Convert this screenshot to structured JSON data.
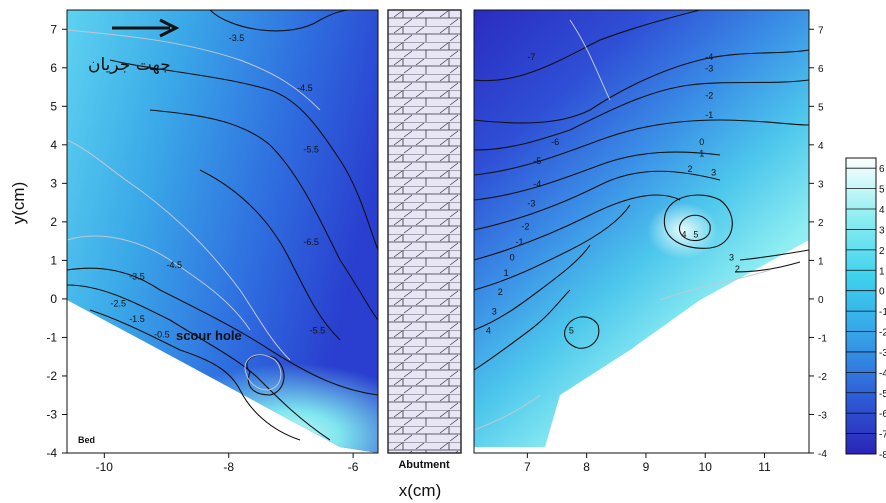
{
  "chart_data": {
    "type": "heatmap",
    "xlabel": "x(cm)",
    "ylabel": "y(cm)",
    "xlim": [
      -10.6,
      11.8
    ],
    "ylim": [
      -4,
      7.5
    ],
    "x_ticks_left": [
      "-10",
      "-8",
      "-6"
    ],
    "x_ticks_right": [
      "7",
      "8",
      "9",
      "10",
      "11"
    ],
    "y_ticks": [
      "-4",
      "-3",
      "-2",
      "-1",
      "0",
      "1",
      "2",
      "3",
      "4",
      "5",
      "6",
      "7"
    ],
    "colorbar_ticks": [
      "6",
      "5",
      "4",
      "3",
      "2",
      "1",
      "0",
      "-1",
      "-2",
      "-3",
      "-4",
      "-5",
      "-6",
      "-7",
      "-8"
    ],
    "colorbar_range": [
      -8,
      6.5
    ],
    "contour_labels_left": [
      {
        "text": "-3.5",
        "x": -8.0,
        "y": 6.7
      },
      {
        "text": "-4.5",
        "x": -6.9,
        "y": 5.4
      },
      {
        "text": "-5.5",
        "x": -6.8,
        "y": 3.8
      },
      {
        "text": "-6.5",
        "x": -6.8,
        "y": 1.4
      },
      {
        "text": "-5.5",
        "x": -6.7,
        "y": -0.9
      },
      {
        "text": "-4.5",
        "x": -9.0,
        "y": 0.8
      },
      {
        "text": "-3.5",
        "x": -9.6,
        "y": 0.5
      },
      {
        "text": "-2.5",
        "x": -9.9,
        "y": -0.2
      },
      {
        "text": "-1.5",
        "x": -9.6,
        "y": -0.6
      },
      {
        "text": "-0.5",
        "x": -9.2,
        "y": -1.0
      }
    ],
    "contour_labels_right": [
      {
        "text": "-7",
        "x": 7.0,
        "y": 6.2
      },
      {
        "text": "-6",
        "x": 7.4,
        "y": 4.0
      },
      {
        "text": "-5",
        "x": 7.1,
        "y": 3.5
      },
      {
        "text": "-4",
        "x": 7.1,
        "y": 2.9
      },
      {
        "text": "-3",
        "x": 7.0,
        "y": 2.4
      },
      {
        "text": "-2",
        "x": 6.9,
        "y": 1.8
      },
      {
        "text": "-1",
        "x": 6.8,
        "y": 1.4
      },
      {
        "text": "0",
        "x": 6.7,
        "y": 1.0
      },
      {
        "text": "1",
        "x": 6.6,
        "y": 0.6
      },
      {
        "text": "2",
        "x": 6.5,
        "y": 0.1
      },
      {
        "text": "3",
        "x": 6.4,
        "y": -0.4
      },
      {
        "text": "4",
        "x": 6.3,
        "y": -0.9
      },
      {
        "text": "-4",
        "x": 10.0,
        "y": 6.2
      },
      {
        "text": "-3",
        "x": 10.0,
        "y": 5.9
      },
      {
        "text": "-2",
        "x": 10.0,
        "y": 5.2
      },
      {
        "text": "-1",
        "x": 10.0,
        "y": 4.7
      },
      {
        "text": "0",
        "x": 9.9,
        "y": 4.0
      },
      {
        "text": "1",
        "x": 9.9,
        "y": 3.7
      },
      {
        "text": "2",
        "x": 9.7,
        "y": 3.3
      },
      {
        "text": "3",
        "x": 10.1,
        "y": 3.2
      },
      {
        "text": "4",
        "x": 9.6,
        "y": 1.6
      },
      {
        "text": "5",
        "x": 9.8,
        "y": 1.6
      },
      {
        "text": "3",
        "x": 10.4,
        "y": 1.0
      },
      {
        "text": "2",
        "x": 10.5,
        "y": 0.7
      },
      {
        "text": "5",
        "x": 7.7,
        "y": -0.9
      }
    ],
    "annotations": [
      "جهت جریان",
      "scour hole",
      "Bed",
      "Abutment"
    ]
  },
  "colors": {
    "deep": "#3a2fc4",
    "blue": "#2e6be0",
    "mid": "#3ea8ea",
    "cyan": "#5fd8ee",
    "pale": "#b8f4f4",
    "hatch_fill": "#e8e6f6"
  }
}
